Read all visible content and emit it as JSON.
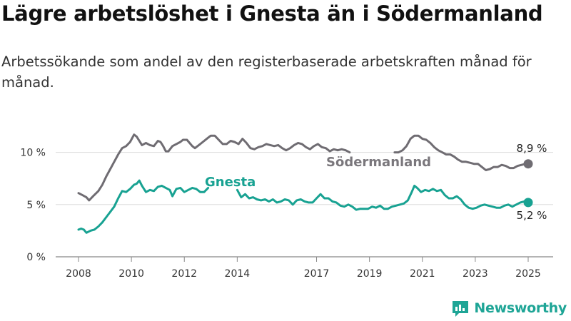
{
  "title": "Lägre arbetslöshet i Gnesta än i Södermanland",
  "subtitle": "Arbetssökande som andel av den registerbaserade arbetskraften månad för månad.",
  "brand": {
    "name": "Newsworthy",
    "logo_icon": "newsworthy-chart-logo-icon"
  },
  "colors": {
    "sodermanland": "#6f6c72",
    "gnesta": "#18a292",
    "grid": "#dddddd",
    "brand": "#1ea596"
  },
  "chart_data": {
    "type": "line",
    "grid": true,
    "ylim": [
      0,
      12
    ],
    "y_ticks": [
      {
        "value": 0,
        "label": "0 %"
      },
      {
        "value": 5,
        "label": "5 %"
      },
      {
        "value": 10,
        "label": "10 %"
      }
    ],
    "xlim": [
      2007.5,
      2025.5
    ],
    "x_ticks": [
      {
        "value": 2008,
        "label": "2008"
      },
      {
        "value": 2010,
        "label": "2010"
      },
      {
        "value": 2012,
        "label": "2012"
      },
      {
        "value": 2014,
        "label": "2014"
      },
      {
        "value": 2017,
        "label": "2017"
      },
      {
        "value": 2019,
        "label": "2019"
      },
      {
        "value": 2021,
        "label": "2021"
      },
      {
        "value": 2023,
        "label": "2023"
      },
      {
        "value": 2025,
        "label": "2025"
      }
    ],
    "series": [
      {
        "name": "Södermanland",
        "color": "#6f6c72",
        "end_label": "8,9 %",
        "segments": [
          [
            [
              2008.0,
              6.1
            ],
            [
              2008.15,
              5.9
            ],
            [
              2008.3,
              5.7
            ],
            [
              2008.4,
              5.4
            ],
            [
              2008.55,
              5.8
            ],
            [
              2008.75,
              6.3
            ],
            [
              2008.9,
              6.9
            ],
            [
              2009.05,
              7.7
            ],
            [
              2009.2,
              8.4
            ],
            [
              2009.35,
              9.1
            ],
            [
              2009.5,
              9.8
            ],
            [
              2009.65,
              10.4
            ],
            [
              2009.8,
              10.6
            ],
            [
              2009.95,
              11.0
            ],
            [
              2010.1,
              11.7
            ],
            [
              2010.2,
              11.5
            ],
            [
              2010.3,
              11.1
            ],
            [
              2010.4,
              10.7
            ],
            [
              2010.55,
              10.9
            ],
            [
              2010.7,
              10.7
            ],
            [
              2010.85,
              10.6
            ],
            [
              2011.0,
              11.1
            ],
            [
              2011.1,
              11.0
            ],
            [
              2011.2,
              10.6
            ],
            [
              2011.3,
              10.1
            ],
            [
              2011.4,
              10.1
            ],
            [
              2011.55,
              10.6
            ],
            [
              2011.7,
              10.8
            ],
            [
              2011.85,
              11.0
            ],
            [
              2011.95,
              11.2
            ],
            [
              2012.1,
              11.2
            ],
            [
              2012.2,
              10.9
            ],
            [
              2012.3,
              10.6
            ],
            [
              2012.4,
              10.4
            ],
            [
              2012.55,
              10.7
            ],
            [
              2012.7,
              11.0
            ],
            [
              2012.85,
              11.3
            ],
            [
              2013.0,
              11.6
            ],
            [
              2013.15,
              11.6
            ],
            [
              2013.3,
              11.2
            ],
            [
              2013.45,
              10.8
            ],
            [
              2013.6,
              10.8
            ],
            [
              2013.75,
              11.1
            ],
            [
              2013.9,
              11.0
            ],
            [
              2014.05,
              10.8
            ],
            [
              2014.2,
              11.3
            ],
            [
              2014.35,
              10.9
            ],
            [
              2014.5,
              10.4
            ],
            [
              2014.65,
              10.3
            ],
            [
              2014.8,
              10.5
            ],
            [
              2014.95,
              10.6
            ],
            [
              2015.1,
              10.8
            ],
            [
              2015.25,
              10.7
            ],
            [
              2015.4,
              10.6
            ],
            [
              2015.55,
              10.7
            ],
            [
              2015.7,
              10.4
            ],
            [
              2015.85,
              10.2
            ],
            [
              2016.0,
              10.4
            ],
            [
              2016.15,
              10.7
            ],
            [
              2016.3,
              10.9
            ],
            [
              2016.45,
              10.8
            ],
            [
              2016.6,
              10.5
            ],
            [
              2016.75,
              10.3
            ],
            [
              2016.9,
              10.6
            ],
            [
              2017.05,
              10.8
            ],
            [
              2017.2,
              10.5
            ],
            [
              2017.35,
              10.4
            ],
            [
              2017.5,
              10.1
            ],
            [
              2017.65,
              10.3
            ],
            [
              2017.8,
              10.2
            ],
            [
              2017.95,
              10.3
            ],
            [
              2018.1,
              10.2
            ],
            [
              2018.25,
              10.0
            ]
          ],
          [
            [
              2019.95,
              10.0
            ],
            [
              2020.1,
              10.0
            ],
            [
              2020.25,
              10.2
            ],
            [
              2020.4,
              10.6
            ],
            [
              2020.55,
              11.3
            ],
            [
              2020.7,
              11.6
            ],
            [
              2020.85,
              11.6
            ],
            [
              2021.0,
              11.3
            ],
            [
              2021.15,
              11.2
            ],
            [
              2021.3,
              10.9
            ],
            [
              2021.45,
              10.5
            ],
            [
              2021.6,
              10.2
            ],
            [
              2021.75,
              10.0
            ],
            [
              2021.9,
              9.8
            ],
            [
              2022.05,
              9.8
            ],
            [
              2022.2,
              9.6
            ],
            [
              2022.35,
              9.3
            ],
            [
              2022.5,
              9.1
            ],
            [
              2022.65,
              9.1
            ],
            [
              2022.8,
              9.0
            ],
            [
              2022.95,
              8.9
            ],
            [
              2023.1,
              8.9
            ],
            [
              2023.25,
              8.6
            ],
            [
              2023.4,
              8.3
            ],
            [
              2023.55,
              8.4
            ],
            [
              2023.7,
              8.6
            ],
            [
              2023.85,
              8.6
            ],
            [
              2024.0,
              8.8
            ],
            [
              2024.15,
              8.7
            ],
            [
              2024.3,
              8.5
            ],
            [
              2024.45,
              8.5
            ],
            [
              2024.6,
              8.7
            ],
            [
              2024.75,
              8.8
            ],
            [
              2024.9,
              8.9
            ],
            [
              2025.0,
              8.9
            ]
          ]
        ]
      },
      {
        "name": "Gnesta",
        "color": "#18a292",
        "end_label": "5,2 %",
        "segments": [
          [
            [
              2008.0,
              2.6
            ],
            [
              2008.1,
              2.7
            ],
            [
              2008.2,
              2.6
            ],
            [
              2008.3,
              2.3
            ],
            [
              2008.45,
              2.5
            ],
            [
              2008.6,
              2.6
            ],
            [
              2008.75,
              2.9
            ],
            [
              2008.9,
              3.3
            ],
            [
              2009.05,
              3.8
            ],
            [
              2009.2,
              4.3
            ],
            [
              2009.35,
              4.8
            ],
            [
              2009.5,
              5.6
            ],
            [
              2009.65,
              6.3
            ],
            [
              2009.8,
              6.2
            ],
            [
              2009.95,
              6.5
            ],
            [
              2010.1,
              6.9
            ],
            [
              2010.2,
              7.0
            ],
            [
              2010.3,
              7.3
            ],
            [
              2010.4,
              6.8
            ],
            [
              2010.55,
              6.2
            ],
            [
              2010.7,
              6.4
            ],
            [
              2010.85,
              6.3
            ],
            [
              2011.0,
              6.7
            ],
            [
              2011.15,
              6.8
            ],
            [
              2011.3,
              6.6
            ],
            [
              2011.45,
              6.4
            ],
            [
              2011.55,
              5.8
            ],
            [
              2011.7,
              6.5
            ],
            [
              2011.85,
              6.6
            ],
            [
              2012.0,
              6.2
            ],
            [
              2012.15,
              6.4
            ],
            [
              2012.3,
              6.6
            ],
            [
              2012.45,
              6.5
            ],
            [
              2012.6,
              6.2
            ],
            [
              2012.75,
              6.2
            ],
            [
              2012.9,
              6.6
            ]
          ],
          [
            [
              2014.0,
              6.4
            ],
            [
              2014.15,
              5.7
            ],
            [
              2014.3,
              6.0
            ],
            [
              2014.45,
              5.6
            ],
            [
              2014.6,
              5.7
            ],
            [
              2014.75,
              5.5
            ],
            [
              2014.9,
              5.4
            ],
            [
              2015.05,
              5.5
            ],
            [
              2015.2,
              5.3
            ],
            [
              2015.35,
              5.5
            ],
            [
              2015.5,
              5.2
            ],
            [
              2015.65,
              5.3
            ],
            [
              2015.8,
              5.5
            ],
            [
              2015.95,
              5.4
            ],
            [
              2016.1,
              5.0
            ],
            [
              2016.25,
              5.4
            ],
            [
              2016.4,
              5.5
            ],
            [
              2016.55,
              5.3
            ],
            [
              2016.7,
              5.2
            ],
            [
              2016.85,
              5.2
            ],
            [
              2017.0,
              5.6
            ],
            [
              2017.15,
              6.0
            ],
            [
              2017.3,
              5.6
            ],
            [
              2017.45,
              5.6
            ],
            [
              2017.6,
              5.3
            ],
            [
              2017.75,
              5.2
            ],
            [
              2017.9,
              4.9
            ],
            [
              2018.05,
              4.8
            ],
            [
              2018.2,
              5.0
            ],
            [
              2018.35,
              4.8
            ],
            [
              2018.5,
              4.5
            ],
            [
              2018.65,
              4.6
            ],
            [
              2018.8,
              4.6
            ],
            [
              2018.95,
              4.6
            ],
            [
              2019.1,
              4.8
            ],
            [
              2019.25,
              4.7
            ],
            [
              2019.4,
              4.9
            ],
            [
              2019.55,
              4.6
            ],
            [
              2019.7,
              4.6
            ],
            [
              2019.85,
              4.8
            ],
            [
              2020.0,
              4.9
            ],
            [
              2020.15,
              5.0
            ],
            [
              2020.3,
              5.1
            ],
            [
              2020.45,
              5.4
            ],
            [
              2020.6,
              6.2
            ],
            [
              2020.7,
              6.8
            ],
            [
              2020.8,
              6.6
            ],
            [
              2020.95,
              6.2
            ],
            [
              2021.1,
              6.4
            ],
            [
              2021.25,
              6.3
            ],
            [
              2021.4,
              6.5
            ],
            [
              2021.55,
              6.3
            ],
            [
              2021.7,
              6.4
            ],
            [
              2021.85,
              5.9
            ],
            [
              2022.0,
              5.6
            ],
            [
              2022.15,
              5.6
            ],
            [
              2022.3,
              5.8
            ],
            [
              2022.45,
              5.5
            ],
            [
              2022.6,
              5.0
            ],
            [
              2022.75,
              4.7
            ],
            [
              2022.9,
              4.6
            ],
            [
              2023.05,
              4.7
            ],
            [
              2023.2,
              4.9
            ],
            [
              2023.35,
              5.0
            ],
            [
              2023.5,
              4.9
            ],
            [
              2023.65,
              4.8
            ],
            [
              2023.8,
              4.7
            ],
            [
              2023.95,
              4.7
            ],
            [
              2024.1,
              4.9
            ],
            [
              2024.25,
              5.0
            ],
            [
              2024.4,
              4.8
            ],
            [
              2024.55,
              5.0
            ],
            [
              2024.7,
              5.2
            ],
            [
              2024.85,
              5.3
            ],
            [
              2025.0,
              5.2
            ]
          ]
        ]
      }
    ]
  }
}
